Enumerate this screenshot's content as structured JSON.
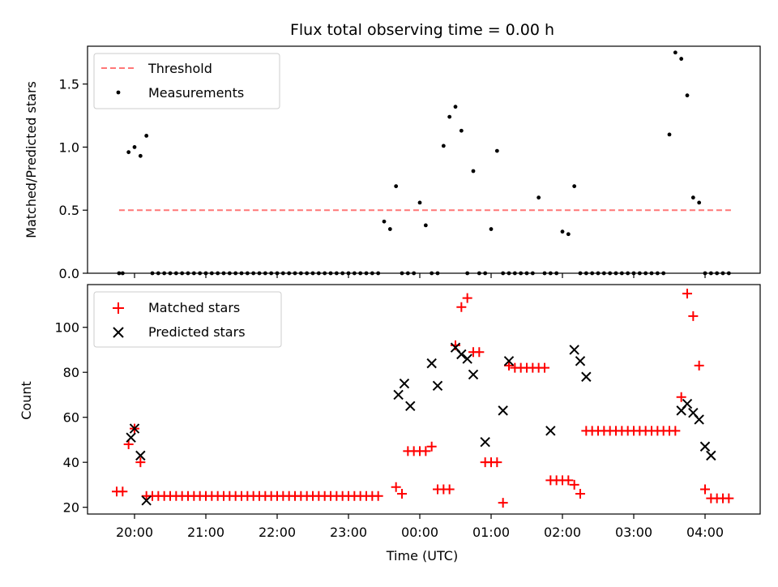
{
  "chart_data": [
    {
      "type": "scatter",
      "title": "Flux total observing time = 0.00 h",
      "xlabel": "",
      "ylabel": "Matched/Predicted stars",
      "ylim": [
        0,
        1.8
      ],
      "yticks": [
        0.0,
        0.5,
        1.0,
        1.5
      ],
      "ytick_labels": [
        "0.0",
        "0.5",
        "1.0",
        "1.5"
      ],
      "legend": {
        "placement": "top-left",
        "entries": [
          "Threshold",
          "Measurements"
        ]
      },
      "threshold": {
        "name": "Threshold",
        "y": 0.5,
        "x_start": "19:47",
        "x_end": "04:23",
        "color": "#ff7777",
        "style": "dashed"
      },
      "series": [
        {
          "name": "Measurements",
          "color": "#000000",
          "marker": "dot",
          "x": [
            "19:47",
            "19:50",
            "19:55",
            "20:00",
            "20:05",
            "20:10",
            "20:15",
            "20:20",
            "20:25",
            "20:30",
            "20:35",
            "20:40",
            "20:45",
            "20:50",
            "20:55",
            "21:00",
            "21:05",
            "21:10",
            "21:15",
            "21:20",
            "21:25",
            "21:30",
            "21:35",
            "21:40",
            "21:45",
            "21:50",
            "21:55",
            "22:00",
            "22:05",
            "22:10",
            "22:15",
            "22:20",
            "22:25",
            "22:30",
            "22:35",
            "22:40",
            "22:45",
            "22:50",
            "22:55",
            "23:00",
            "23:05",
            "23:10",
            "23:15",
            "23:20",
            "23:25",
            "23:30",
            "23:35",
            "23:40",
            "23:45",
            "23:50",
            "23:55",
            "00:00",
            "00:05",
            "00:10",
            "00:15",
            "00:20",
            "00:25",
            "00:30",
            "00:35",
            "00:40",
            "00:45",
            "00:50",
            "00:55",
            "01:00",
            "01:05",
            "01:10",
            "01:15",
            "01:20",
            "01:25",
            "01:30",
            "01:35",
            "01:40",
            "01:45",
            "01:50",
            "01:55",
            "02:00",
            "02:05",
            "02:10",
            "02:15",
            "02:20",
            "02:25",
            "02:30",
            "02:35",
            "02:40",
            "02:45",
            "02:50",
            "02:55",
            "03:00",
            "03:05",
            "03:10",
            "03:15",
            "03:20",
            "03:25",
            "03:30",
            "03:35",
            "03:40",
            "03:45",
            "03:50",
            "03:55",
            "04:00",
            "04:05",
            "04:10",
            "04:15",
            "04:20"
          ],
          "y": [
            0,
            0,
            0.96,
            1.0,
            0.93,
            1.09,
            0,
            0,
            0,
            0,
            0,
            0,
            0,
            0,
            0,
            0,
            0,
            0,
            0,
            0,
            0,
            0,
            0,
            0,
            0,
            0,
            0,
            0,
            0,
            0,
            0,
            0,
            0,
            0,
            0,
            0,
            0,
            0,
            0,
            0,
            0,
            0,
            0,
            0,
            0,
            0.41,
            0.35,
            0.69,
            0,
            0,
            0,
            0.56,
            0.38,
            0,
            0,
            1.01,
            1.24,
            1.32,
            1.13,
            0,
            0.81,
            0,
            0,
            0.35,
            0.97,
            0,
            0,
            0,
            0,
            0,
            0,
            0.6,
            0,
            0,
            0,
            0.33,
            0.31,
            0.69,
            0,
            0,
            0,
            0,
            0,
            0,
            0,
            0,
            0,
            0,
            0,
            0,
            0,
            0,
            0,
            1.1,
            1.75,
            1.7,
            1.41,
            0.6,
            0.56,
            0,
            0,
            0,
            0,
            0
          ]
        }
      ]
    },
    {
      "type": "scatter",
      "title": "",
      "xlabel": "Time (UTC)",
      "ylabel": "Count",
      "ylim": [
        17,
        119
      ],
      "yticks": [
        20,
        40,
        60,
        80,
        100
      ],
      "ytick_labels": [
        "20",
        "40",
        "60",
        "80",
        "100"
      ],
      "xticks": [
        "20:00",
        "21:00",
        "22:00",
        "23:00",
        "00:00",
        "01:00",
        "02:00",
        "03:00",
        "04:00"
      ],
      "legend": {
        "placement": "top-left",
        "entries": [
          "Matched stars",
          "Predicted stars"
        ]
      },
      "series": [
        {
          "name": "Matched stars",
          "color": "#ff0000",
          "marker": "plus",
          "x": [
            "19:45",
            "19:50",
            "19:55",
            "20:00",
            "20:05",
            "20:10",
            "20:15",
            "20:20",
            "20:25",
            "20:30",
            "20:35",
            "20:40",
            "20:45",
            "20:50",
            "20:55",
            "21:00",
            "21:05",
            "21:10",
            "21:15",
            "21:20",
            "21:25",
            "21:30",
            "21:35",
            "21:40",
            "21:45",
            "21:50",
            "21:55",
            "22:00",
            "22:05",
            "22:10",
            "22:15",
            "22:20",
            "22:25",
            "22:30",
            "22:35",
            "22:40",
            "22:45",
            "22:50",
            "22:55",
            "23:00",
            "23:05",
            "23:10",
            "23:15",
            "23:20",
            "23:25",
            "23:40",
            "23:45",
            "23:50",
            "23:55",
            "00:00",
            "00:05",
            "00:10",
            "00:15",
            "00:20",
            "00:25",
            "00:30",
            "00:35",
            "00:40",
            "00:45",
            "00:50",
            "00:55",
            "01:00",
            "01:05",
            "01:10",
            "01:15",
            "01:20",
            "01:25",
            "01:30",
            "01:35",
            "01:40",
            "01:45",
            "01:50",
            "01:55",
            "02:00",
            "02:05",
            "02:10",
            "02:15",
            "02:20",
            "02:25",
            "02:30",
            "02:35",
            "02:40",
            "02:45",
            "02:50",
            "02:55",
            "03:00",
            "03:05",
            "03:10",
            "03:15",
            "03:20",
            "03:25",
            "03:30",
            "03:35",
            "03:40",
            "03:45",
            "03:50",
            "03:55",
            "04:00",
            "04:05",
            "04:10",
            "04:15",
            "04:20"
          ],
          "y": [
            27,
            27,
            48,
            55,
            40,
            25,
            25,
            25,
            25,
            25,
            25,
            25,
            25,
            25,
            25,
            25,
            25,
            25,
            25,
            25,
            25,
            25,
            25,
            25,
            25,
            25,
            25,
            25,
            25,
            25,
            25,
            25,
            25,
            25,
            25,
            25,
            25,
            25,
            25,
            25,
            25,
            25,
            25,
            25,
            25,
            29,
            26,
            45,
            45,
            45,
            45,
            47,
            28,
            28,
            28,
            92,
            109,
            113,
            89,
            89,
            40,
            40,
            40,
            22,
            83,
            82,
            82,
            82,
            82,
            82,
            82,
            32,
            32,
            32,
            32,
            30,
            26,
            54,
            54,
            54,
            54,
            54,
            54,
            54,
            54,
            54,
            54,
            54,
            54,
            54,
            54,
            54,
            54,
            69,
            115,
            105,
            83,
            28,
            24,
            24,
            24,
            24
          ]
        },
        {
          "name": "Predicted stars",
          "color": "#000000",
          "marker": "x",
          "x": [
            "19:57",
            "20:00",
            "20:05",
            "20:10",
            "23:42",
            "23:47",
            "23:52",
            "00:10",
            "00:15",
            "00:30",
            "00:35",
            "00:40",
            "00:45",
            "00:55",
            "01:10",
            "01:15",
            "01:50",
            "02:10",
            "02:15",
            "02:20",
            "03:40",
            "03:45",
            "03:50",
            "03:55",
            "04:00",
            "04:05"
          ],
          "y": [
            51,
            55,
            43,
            23,
            70,
            75,
            65,
            84,
            74,
            91,
            88,
            86,
            79,
            49,
            63,
            85,
            54,
            90,
            85,
            78,
            63,
            66,
            62,
            59,
            47,
            43
          ]
        }
      ]
    }
  ]
}
